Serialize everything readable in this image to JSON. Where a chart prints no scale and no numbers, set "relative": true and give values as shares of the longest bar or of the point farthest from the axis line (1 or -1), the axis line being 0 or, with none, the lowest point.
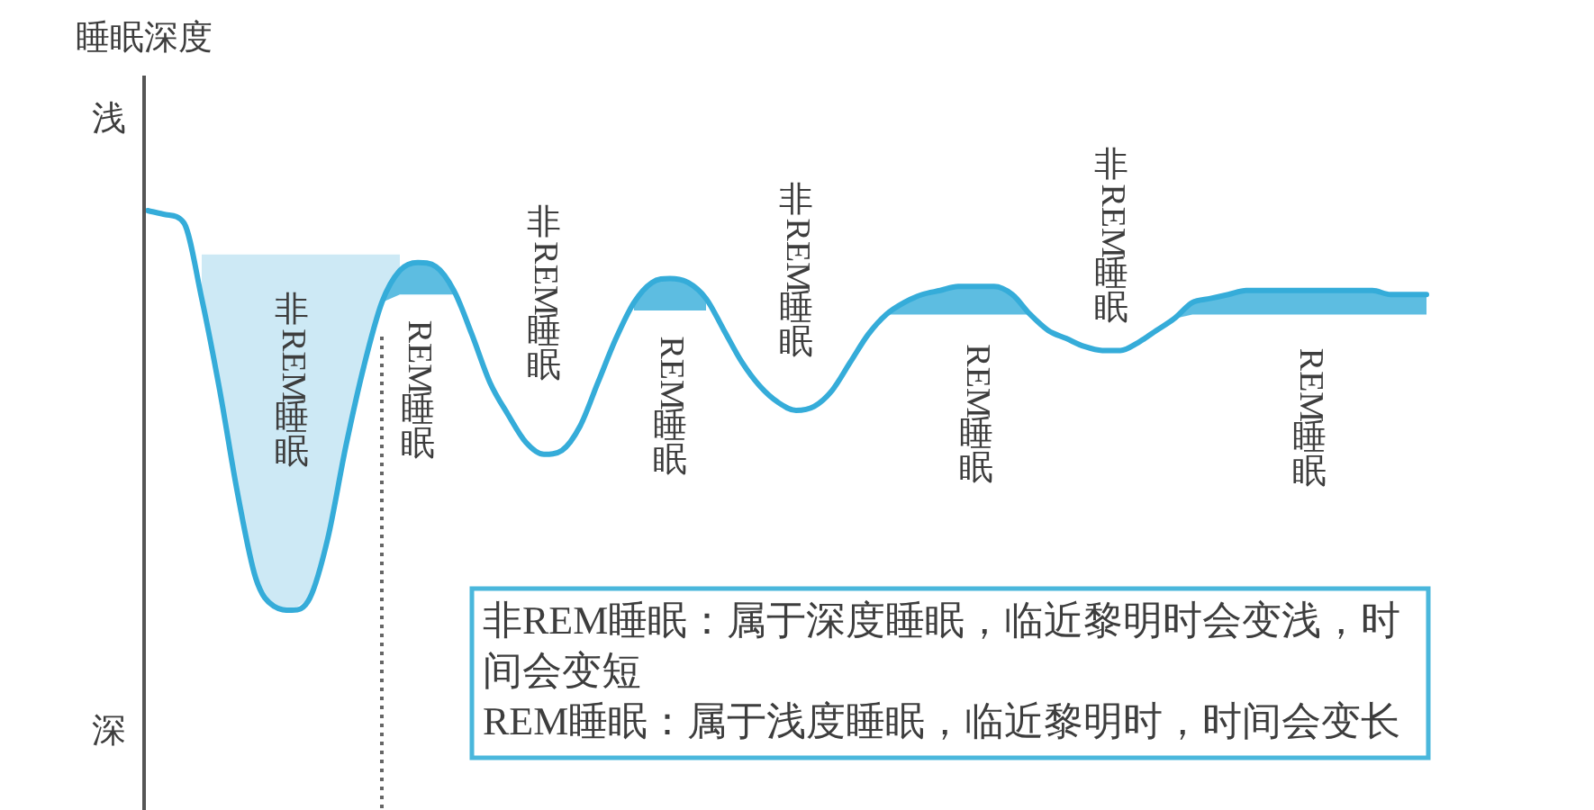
{
  "chart_data": {
    "type": "line",
    "relative": true,
    "ylabel": "睡眠深度",
    "categories": [
      null,
      null,
      null,
      null,
      null,
      null,
      null,
      null,
      null,
      null,
      null,
      null,
      null,
      null,
      null,
      null,
      null,
      null,
      null,
      null,
      null,
      null,
      null,
      null,
      null,
      null,
      null,
      null,
      null,
      null,
      null,
      null,
      null,
      null,
      null,
      null,
      null,
      null,
      null,
      null,
      null,
      null,
      null,
      null,
      null,
      null,
      null,
      null,
      null,
      null,
      null,
      null,
      null,
      null,
      null,
      null,
      null,
      null,
      null,
      null,
      null,
      null,
      null,
      null,
      null,
      null,
      null,
      null,
      null,
      null,
      null,
      null
    ],
    "series": [
      {
        "color": "#35acd9",
        "values": [
          1,
          0.99,
          0.97,
          0.78,
          0.55,
          0.29,
          0.08,
          0.01,
          0,
          0.03,
          0.18,
          0.41,
          0.61,
          0.77,
          0.85,
          0.87,
          0.86,
          0.8,
          0.69,
          0.57,
          0.49,
          0.42,
          0.39,
          0.4,
          0.46,
          0.57,
          0.68,
          0.77,
          0.82,
          0.83,
          0.82,
          0.78,
          0.7,
          0.62,
          0.56,
          0.52,
          0.5,
          0.51,
          0.55,
          0.62,
          0.69,
          0.74,
          0.77,
          0.79,
          0.8,
          0.81,
          0.81,
          0.81,
          0.79,
          0.74,
          0.7,
          0.68,
          0.66,
          0.65,
          0.65,
          0.67,
          0.7,
          0.73,
          0.77,
          0.78,
          0.79,
          0.8,
          0.8,
          0.8,
          0.8,
          0.8,
          0.8,
          0.8,
          0.8,
          0.79,
          0.79,
          0.79
        ],
        "lower": [
          null,
          null,
          null,
          null,
          null,
          null,
          null,
          null,
          null,
          null,
          null,
          null,
          null,
          0.77,
          0.79,
          0.79,
          0.79,
          0.79,
          null,
          null,
          null,
          null,
          null,
          null,
          null,
          null,
          null,
          0.75,
          0.75,
          0.75,
          0.75,
          0.75,
          null,
          null,
          null,
          null,
          null,
          null,
          null,
          null,
          null,
          0.74,
          0.74,
          0.74,
          0.74,
          0.74,
          0.74,
          0.74,
          0.74,
          0.74,
          null,
          null,
          null,
          null,
          null,
          null,
          null,
          0.73,
          0.74,
          0.74,
          0.74,
          0.74,
          0.74,
          0.74,
          0.74,
          0.74,
          0.74,
          0.74,
          0.74,
          0.74,
          0.74,
          0.74
        ],
        "upper": [
          null,
          null,
          null,
          null,
          null,
          null,
          null,
          null,
          null,
          null,
          null,
          null,
          null,
          0.77,
          0.85,
          0.87,
          0.86,
          0.8,
          null,
          null,
          null,
          null,
          null,
          null,
          null,
          null,
          null,
          0.77,
          0.82,
          0.83,
          0.82,
          0.78,
          null,
          null,
          null,
          null,
          null,
          null,
          null,
          null,
          null,
          0.74,
          0.77,
          0.79,
          0.8,
          0.81,
          0.81,
          0.81,
          0.79,
          0.74,
          null,
          null,
          null,
          null,
          null,
          null,
          null,
          0.73,
          0.77,
          0.78,
          0.79,
          0.8,
          0.8,
          0.8,
          0.8,
          0.8,
          0.8,
          0.8,
          0.8,
          0.79,
          0.79,
          0.79
        ]
      },
      {
        "type": "area",
        "color": "#cde9f5",
        "values": [
          null,
          null,
          null,
          0.89,
          0.89,
          0.89,
          0.89,
          0.89,
          0.89,
          0.89,
          0.89,
          0.89,
          0.89,
          0.89,
          0.89,
          null,
          null,
          null,
          null,
          null,
          null,
          null,
          null,
          null,
          null,
          null,
          null,
          null,
          null,
          null,
          null,
          null,
          null,
          null,
          null,
          null,
          null,
          null,
          null,
          null,
          null,
          null,
          null,
          null,
          null,
          null,
          null,
          null,
          null,
          null,
          null,
          null,
          null,
          null,
          null,
          null,
          null,
          null,
          null,
          null,
          null,
          null,
          null,
          null,
          null,
          null,
          null,
          null,
          null,
          null,
          null,
          null
        ]
      }
    ],
    "annotations": [
      "非REM睡眠",
      "REM睡眠",
      "非REM睡眠",
      "REM睡眠",
      "非REM睡眠",
      "REM睡眠",
      "非REM睡眠",
      "REM睡眠",
      "浅",
      "深",
      "非REM睡眠：属于深度睡眠，临近黎明时会变浅，时间会变短",
      "REM睡眠：属于浅度睡眠，临近黎明时，时间会变长"
    ]
  }
}
